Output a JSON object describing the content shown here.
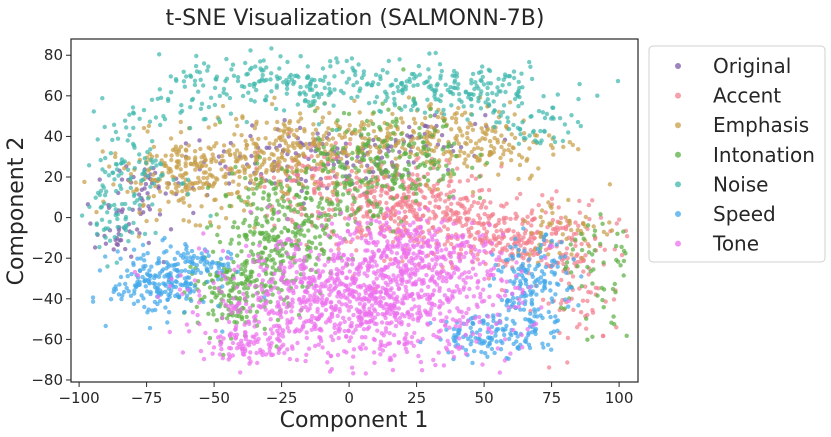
{
  "chart_data": {
    "type": "scatter",
    "title": "t-SNE Visualization (SALMONN-7B)",
    "xlabel": "Component 1",
    "ylabel": "Component 2",
    "xlim": [
      -103,
      107
    ],
    "ylim": [
      -81,
      88
    ],
    "xticks": [
      -100,
      -75,
      -50,
      -25,
      0,
      25,
      50,
      75,
      100
    ],
    "yticks": [
      -80,
      -60,
      -40,
      -20,
      0,
      20,
      40,
      60,
      80
    ],
    "legend_position": "outside-right-top",
    "grid": false,
    "series": [
      {
        "name": "Original",
        "color": "#7e5aa8",
        "clusters": [
          {
            "cx": -10,
            "cy": 28,
            "sx": 22,
            "sy": 8,
            "n": 140
          },
          {
            "cx": -75,
            "cy": 15,
            "sx": 10,
            "sy": 10,
            "n": 50
          },
          {
            "cx": -85,
            "cy": -10,
            "sx": 6,
            "sy": 6,
            "n": 25
          },
          {
            "cx": 30,
            "cy": 40,
            "sx": 10,
            "sy": 6,
            "n": 30
          }
        ]
      },
      {
        "name": "Accent",
        "color": "#f3808f",
        "clusters": [
          {
            "cx": 20,
            "cy": 5,
            "sx": 18,
            "sy": 10,
            "n": 380
          },
          {
            "cx": 60,
            "cy": -10,
            "sx": 18,
            "sy": 9,
            "n": 300
          },
          {
            "cx": -15,
            "cy": 20,
            "sx": 10,
            "sy": 10,
            "n": 80
          },
          {
            "cx": 85,
            "cy": -40,
            "sx": 8,
            "sy": 12,
            "n": 60
          }
        ]
      },
      {
        "name": "Emphasis",
        "color": "#c8a048",
        "clusters": [
          {
            "cx": -55,
            "cy": 20,
            "sx": 18,
            "sy": 10,
            "n": 280
          },
          {
            "cx": -20,
            "cy": 35,
            "sx": 18,
            "sy": 8,
            "n": 220
          },
          {
            "cx": 40,
            "cy": 38,
            "sx": 20,
            "sy": 10,
            "n": 240
          },
          {
            "cx": 80,
            "cy": -5,
            "sx": 10,
            "sy": 8,
            "n": 50
          }
        ]
      },
      {
        "name": "Intonation",
        "color": "#5bb043",
        "clusters": [
          {
            "cx": -28,
            "cy": -10,
            "sx": 10,
            "sy": 16,
            "n": 280
          },
          {
            "cx": -45,
            "cy": -38,
            "sx": 8,
            "sy": 10,
            "n": 140
          },
          {
            "cx": 15,
            "cy": 30,
            "sx": 14,
            "sy": 12,
            "n": 200
          },
          {
            "cx": -5,
            "cy": 10,
            "sx": 10,
            "sy": 10,
            "n": 100
          },
          {
            "cx": 90,
            "cy": -25,
            "sx": 8,
            "sy": 18,
            "n": 60
          }
        ]
      },
      {
        "name": "Noise",
        "color": "#3fb8ad",
        "clusters": [
          {
            "cx": -20,
            "cy": 65,
            "sx": 25,
            "sy": 7,
            "n": 220
          },
          {
            "cx": 40,
            "cy": 63,
            "sx": 20,
            "sy": 7,
            "n": 180
          },
          {
            "cx": -80,
            "cy": 25,
            "sx": 9,
            "sy": 14,
            "n": 110
          },
          {
            "cx": -88,
            "cy": 0,
            "sx": 6,
            "sy": 10,
            "n": 40
          },
          {
            "cx": 70,
            "cy": 42,
            "sx": 7,
            "sy": 6,
            "n": 40
          }
        ]
      },
      {
        "name": "Speed",
        "color": "#42a8ea",
        "clusters": [
          {
            "cx": -70,
            "cy": -32,
            "sx": 9,
            "sy": 8,
            "n": 200
          },
          {
            "cx": -55,
            "cy": -22,
            "sx": 6,
            "sy": 4,
            "n": 60
          },
          {
            "cx": 68,
            "cy": -35,
            "sx": 7,
            "sy": 12,
            "n": 180
          },
          {
            "cx": 52,
            "cy": -58,
            "sx": 10,
            "sy": 5,
            "n": 120
          }
        ]
      },
      {
        "name": "Tone",
        "color": "#ed72ee",
        "clusters": [
          {
            "cx": 5,
            "cy": -40,
            "sx": 28,
            "sy": 15,
            "n": 1100
          },
          {
            "cx": 25,
            "cy": -15,
            "sx": 14,
            "sy": 8,
            "n": 200
          },
          {
            "cx": -38,
            "cy": -62,
            "sx": 7,
            "sy": 5,
            "n": 80
          }
        ]
      }
    ]
  }
}
